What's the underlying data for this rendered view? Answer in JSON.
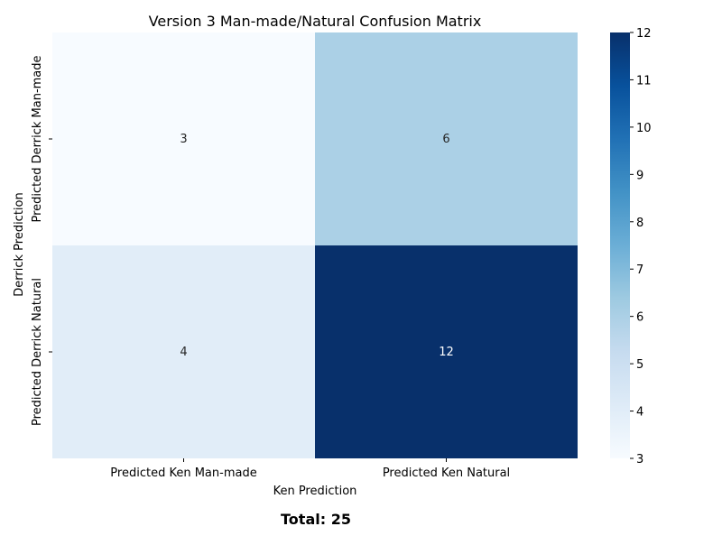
{
  "chart_data": {
    "type": "heatmap",
    "title": "Version 3 Man-made/Natural Confusion Matrix",
    "xlabel": "Ken Prediction",
    "ylabel": "Derrick Prediction",
    "x_categories": [
      "Predicted Ken Man-made",
      "Predicted Ken Natural"
    ],
    "y_categories": [
      "Predicted Derrick Man-made",
      "Predicted Derrick Natural"
    ],
    "values": [
      [
        3,
        6
      ],
      [
        4,
        12
      ]
    ],
    "colorbar": {
      "min": 3,
      "max": 12,
      "ticks": [
        "3",
        "4",
        "5",
        "6",
        "7",
        "8",
        "9",
        "10",
        "11",
        "12"
      ]
    },
    "colormap": "Blues",
    "grid": false
  },
  "footer": {
    "total_text": "Total: 25"
  }
}
